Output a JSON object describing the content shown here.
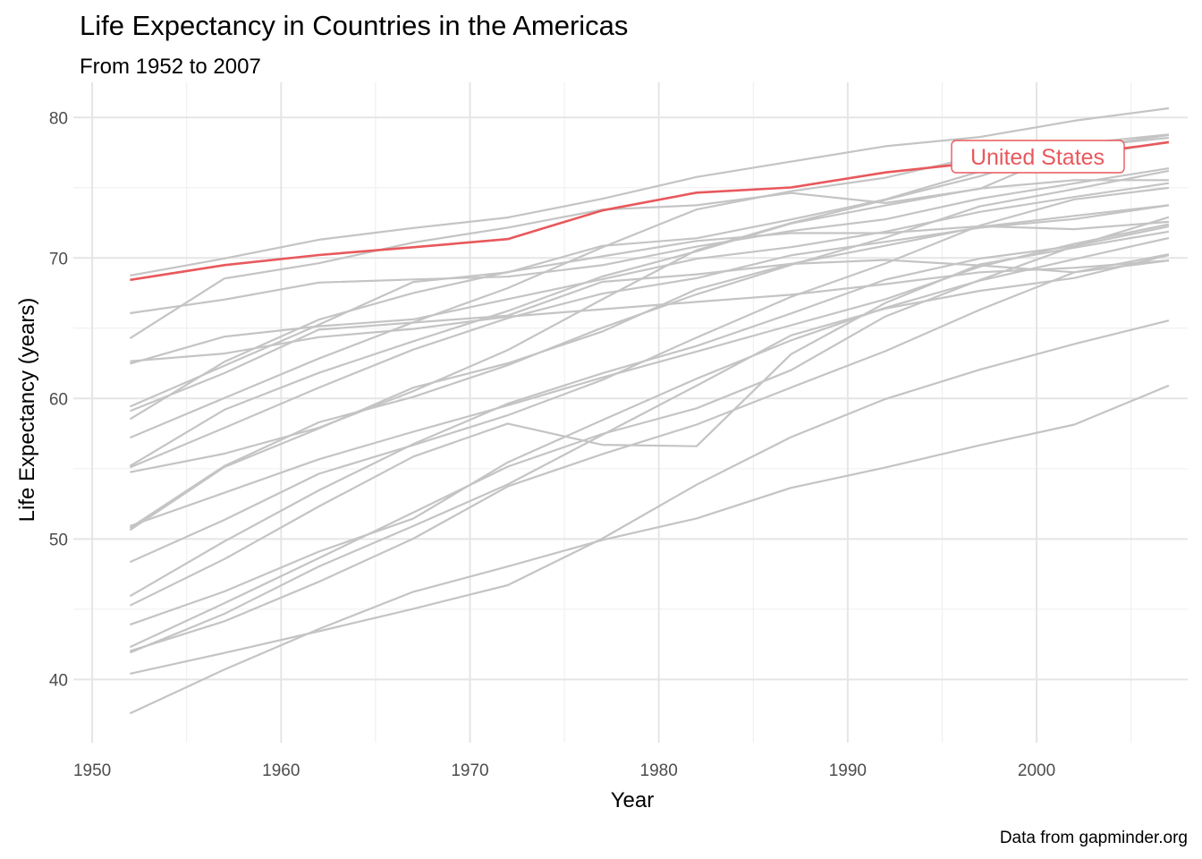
{
  "chart_data": {
    "type": "line",
    "title": "Life Expectancy in Countries in the Americas",
    "subtitle": "From 1952 to 2007",
    "xlabel": "Year",
    "ylabel": "Life Expectancy (years)",
    "caption": "Data from gapminder.org",
    "xlim": [
      1949,
      2008
    ],
    "ylim": [
      35.5,
      82.5
    ],
    "x_ticks": [
      1950,
      1960,
      1970,
      1980,
      1990,
      2000
    ],
    "y_ticks": [
      40,
      50,
      60,
      70,
      80
    ],
    "grid": true,
    "highlight_label": "United States",
    "highlight_color": "#e8585c",
    "background_color": "#c4c4c4",
    "x": [
      1952,
      1957,
      1962,
      1967,
      1972,
      1977,
      1982,
      1987,
      1992,
      1997,
      2002,
      2007
    ],
    "highlight": {
      "name": "United States",
      "values": [
        68.44,
        69.49,
        70.21,
        70.76,
        71.34,
        73.38,
        74.65,
        75.02,
        76.09,
        76.81,
        77.31,
        78.24
      ]
    },
    "series": [
      {
        "values": [
          68.75,
          69.96,
          71.3,
          72.13,
          72.88,
          74.21,
          75.76,
          76.86,
          77.95,
          78.61,
          79.77,
          80.65
        ]
      },
      {
        "values": [
          62.48,
          64.4,
          65.14,
          65.63,
          67.07,
          68.48,
          69.94,
          70.77,
          71.87,
          73.28,
          74.34,
          75.32
        ]
      },
      {
        "values": [
          40.41,
          41.89,
          43.43,
          45.03,
          46.71,
          50.02,
          53.86,
          57.25,
          59.96,
          62.05,
          63.88,
          65.55
        ]
      },
      {
        "values": [
          50.92,
          53.29,
          55.67,
          57.63,
          59.5,
          61.49,
          63.34,
          65.21,
          67.06,
          69.39,
          71.01,
          72.39
        ]
      },
      {
        "values": [
          54.75,
          56.07,
          57.92,
          60.52,
          63.44,
          67.05,
          70.56,
          72.49,
          74.13,
          75.82,
          77.86,
          78.55
        ]
      },
      {
        "values": [
          50.64,
          55.12,
          57.86,
          60.77,
          62.5,
          64.76,
          67.77,
          69.58,
          70.87,
          72.21,
          73.0,
          73.75
        ]
      },
      {
        "values": [
          57.21,
          60.03,
          62.84,
          65.42,
          67.85,
          70.75,
          73.45,
          74.75,
          75.71,
          77.26,
          78.12,
          78.78
        ]
      },
      {
        "values": [
          59.42,
          62.33,
          65.25,
          68.29,
          68.97,
          70.86,
          71.4,
          72.74,
          74.17,
          76.15,
          77.16,
          78.27
        ]
      },
      {
        "values": [
          45.93,
          49.83,
          53.46,
          56.75,
          59.63,
          61.79,
          63.73,
          66.05,
          68.46,
          69.96,
          70.85,
          72.24
        ]
      },
      {
        "values": [
          48.36,
          51.36,
          54.64,
          56.68,
          58.8,
          61.31,
          64.34,
          67.23,
          69.61,
          72.31,
          74.17,
          74.99
        ]
      },
      {
        "values": [
          45.26,
          48.57,
          52.31,
          55.86,
          58.21,
          56.7,
          56.6,
          63.15,
          66.8,
          69.54,
          70.73,
          71.88
        ]
      },
      {
        "values": [
          42.02,
          44.14,
          46.95,
          50.02,
          53.74,
          56.03,
          58.14,
          60.78,
          63.37,
          66.32,
          68.98,
          70.26
        ]
      },
      {
        "values": [
          37.58,
          40.7,
          43.59,
          46.24,
          48.04,
          49.92,
          51.46,
          53.64,
          55.09,
          56.67,
          58.14,
          60.92
        ]
      },
      {
        "values": [
          41.91,
          44.67,
          48.04,
          50.92,
          53.88,
          57.4,
          60.91,
          64.49,
          66.4,
          67.66,
          68.57,
          70.2
        ]
      },
      {
        "values": [
          58.53,
          62.61,
          65.61,
          67.51,
          69.0,
          70.11,
          71.21,
          71.77,
          71.77,
          72.26,
          72.05,
          72.57
        ]
      },
      {
        "values": [
          50.79,
          55.19,
          58.3,
          60.11,
          62.36,
          65.03,
          67.41,
          69.5,
          71.45,
          73.67,
          74.9,
          76.2
        ]
      },
      {
        "values": [
          42.31,
          45.43,
          48.63,
          51.88,
          55.15,
          57.47,
          59.3,
          62.01,
          65.84,
          68.43,
          70.84,
          72.9
        ]
      },
      {
        "values": [
          55.19,
          59.2,
          61.82,
          64.07,
          66.22,
          68.68,
          70.47,
          72.45,
          73.74,
          74.94,
          75.54,
          75.54
        ]
      },
      {
        "values": [
          62.65,
          63.2,
          64.36,
          64.95,
          65.82,
          66.35,
          66.87,
          67.38,
          68.14,
          68.98,
          69.3,
          69.82
        ]
      },
      {
        "values": [
          43.9,
          46.26,
          49.1,
          51.45,
          55.45,
          58.45,
          61.41,
          64.13,
          66.46,
          68.39,
          69.91,
          71.42
        ]
      },
      {
        "values": [
          64.28,
          68.54,
          69.62,
          71.1,
          72.16,
          73.44,
          73.75,
          74.63,
          73.91,
          74.92,
          77.78,
          78.75
        ]
      },
      {
        "values": [
          59.1,
          61.8,
          64.9,
          65.4,
          65.9,
          68.3,
          68.83,
          69.58,
          69.86,
          69.47,
          68.98,
          69.82
        ]
      },
      {
        "values": [
          66.07,
          67.04,
          68.25,
          68.47,
          68.67,
          69.48,
          70.81,
          71.92,
          72.75,
          74.22,
          75.31,
          76.38
        ]
      },
      {
        "values": [
          55.09,
          57.91,
          60.77,
          63.48,
          65.71,
          67.46,
          68.56,
          70.19,
          71.15,
          72.15,
          72.77,
          73.75
        ]
      }
    ]
  }
}
